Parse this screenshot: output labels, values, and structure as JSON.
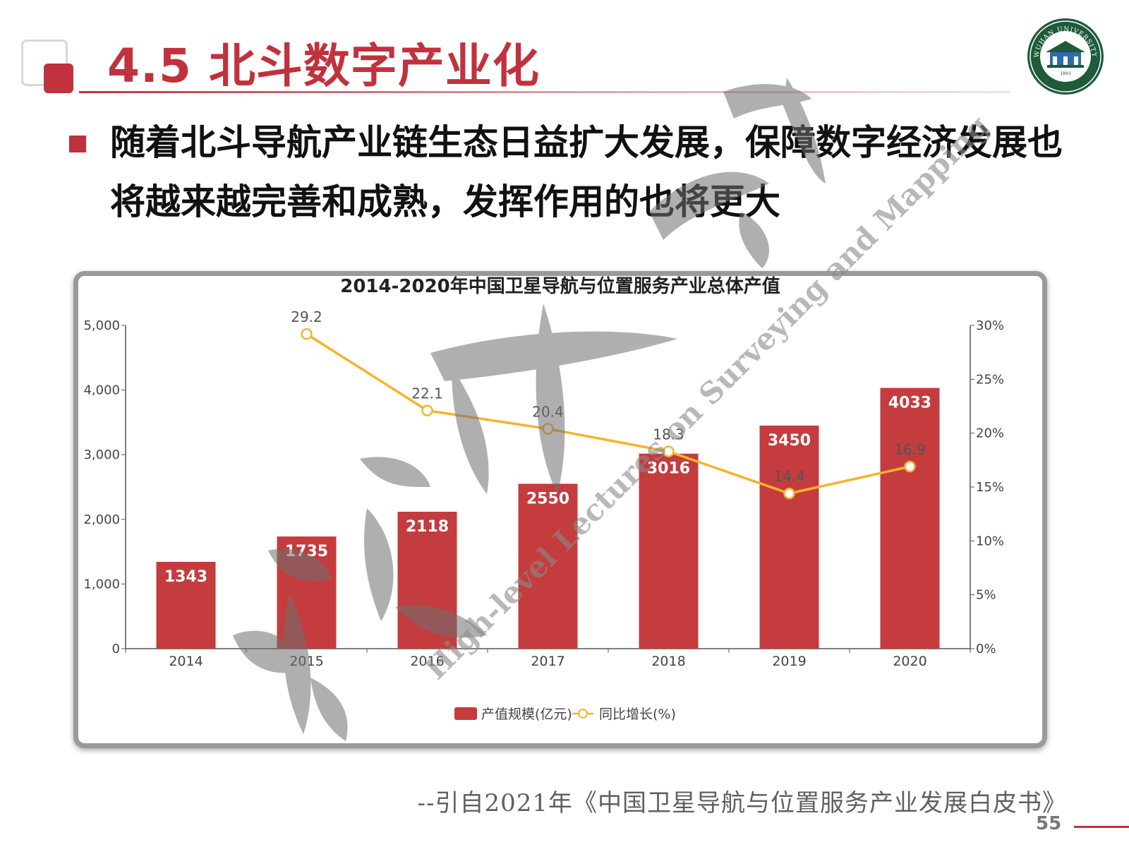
{
  "slide": {
    "title": "4.5 北斗数字产业化",
    "bullet": "随着北斗导航产业链生态日益扩大发展，保障数字经济发展也将越来越完善和成熟，发挥作用的也将更大",
    "citation": "--引自2021年《中国卫星导航与位置服务产业发展白皮书》",
    "page_number": "55",
    "logo": {
      "icon": "university-seal-icon",
      "ring_text": "WUHAN UNIVERSITY",
      "year": "1893"
    },
    "watermark": {
      "calligraphy": "测绘大讲堂",
      "text": "High-level Lectures on Surveying and Mapping"
    },
    "colors": {
      "accent": "#c0323d",
      "bar": "#c43c3e",
      "line": "#f5b32c"
    }
  },
  "chart_data": {
    "type": "bar",
    "title": "2014-2020年中国卫星导航与位置服务产业总体产值",
    "categories": [
      "2014",
      "2015",
      "2016",
      "2017",
      "2018",
      "2019",
      "2020"
    ],
    "series": [
      {
        "name": "产值规模(亿元)",
        "type": "bar",
        "axis": "left",
        "values": [
          1343,
          1735,
          2118,
          2550,
          3016,
          3450,
          4033
        ]
      },
      {
        "name": "同比增长(%)",
        "type": "line",
        "axis": "right",
        "values": [
          null,
          29.2,
          22.1,
          20.4,
          18.3,
          14.4,
          16.9
        ]
      }
    ],
    "bar_labels": [
      "1343",
      "1735",
      "2118",
      "2550",
      "3016",
      "3450",
      "4033"
    ],
    "line_labels": [
      "",
      "29.2",
      "22.1",
      "20.4",
      "18.3",
      "14.4",
      "16.9"
    ],
    "y_left": {
      "min": 0,
      "max": 5000,
      "ticks": [
        "0",
        "1,000",
        "2,000",
        "3,000",
        "4,000",
        "5,000"
      ]
    },
    "y_right": {
      "min": 0,
      "max": 30,
      "ticks": [
        "0%",
        "5%",
        "10%",
        "15%",
        "20%",
        "25%",
        "30%"
      ]
    },
    "grid": false,
    "legend_position": "bottom"
  }
}
